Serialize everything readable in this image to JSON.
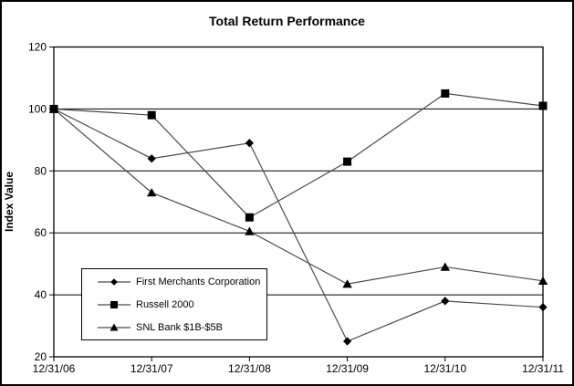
{
  "chart_data": {
    "type": "line",
    "title": "Total Return Performance",
    "xlabel": "",
    "ylabel": "Index Value",
    "categories": [
      "12/31/06",
      "12/31/07",
      "12/31/08",
      "12/31/09",
      "12/31/10",
      "12/31/11"
    ],
    "series": [
      {
        "name": "First Merchants Corporation",
        "marker": "diamond",
        "values": [
          100,
          84,
          89,
          25,
          38,
          36
        ]
      },
      {
        "name": "Russell 2000",
        "marker": "square",
        "values": [
          100,
          98,
          65,
          83,
          105,
          101
        ]
      },
      {
        "name": "SNL Bank $1B-$5B",
        "marker": "triangle",
        "values": [
          100,
          73,
          60.5,
          43.5,
          49,
          44.5
        ]
      }
    ],
    "ylim": [
      20,
      120
    ],
    "yticks": [
      20,
      40,
      60,
      80,
      100,
      120
    ],
    "grid": true,
    "legend_position": "inside-bottom-left",
    "line_color": "#4a4a4a",
    "marker_color": "#000000",
    "axis_color": "#000000",
    "background_color": "#ffffff"
  }
}
